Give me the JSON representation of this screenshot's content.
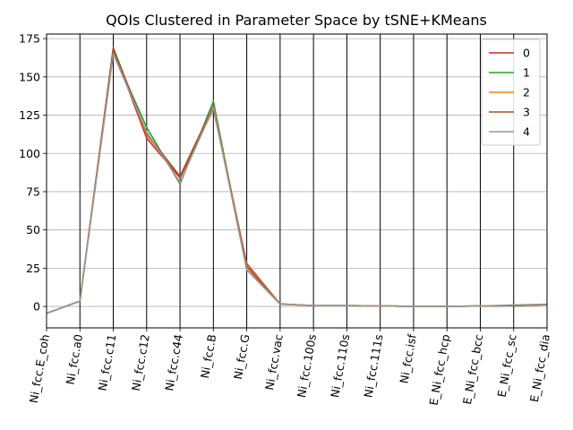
{
  "chart_data": {
    "type": "line",
    "title": "QOIs Clustered in Parameter Space by tSNE+KMeans",
    "xlabel": "",
    "ylabel": "",
    "categories": [
      "Ni_fcc.E_coh",
      "Ni_fcc.a0",
      "Ni_fcc.c11",
      "Ni_fcc.c12",
      "Ni_fcc.c44",
      "Ni_fcc.B",
      "Ni_fcc.G",
      "Ni_fcc.vac",
      "Ni_fcc.100s",
      "Ni_fcc.110s",
      "Ni_fcc.111s",
      "Ni_fcc.isf",
      "E_Ni_fcc_hcp",
      "E_Ni_fcc_bcc",
      "E_Ni_fcc_sc",
      "E_Ni_fcc_dia"
    ],
    "ylim": [
      -14,
      178
    ],
    "yticks": [
      0,
      25,
      50,
      75,
      100,
      125,
      150,
      175
    ],
    "grid": true,
    "legend_position": "upper right",
    "series": [
      {
        "name": "0",
        "color": "#d62728",
        "values": [
          -4.45,
          3.52,
          168,
          110,
          84,
          129,
          28,
          1.6,
          0.5,
          0.5,
          0.4,
          0.0,
          0.0,
          0.3,
          0.6,
          1.2
        ]
      },
      {
        "name": "1",
        "color": "#2ca02c",
        "values": [
          -4.45,
          3.52,
          166,
          117,
          80,
          134,
          24,
          1.5,
          0.5,
          0.5,
          0.4,
          0.0,
          0.0,
          0.3,
          0.6,
          1.2
        ]
      },
      {
        "name": "2",
        "color": "#ff7f0e",
        "values": [
          -4.45,
          3.52,
          169,
          112,
          85,
          131,
          27,
          1.6,
          0.5,
          0.5,
          0.4,
          0.0,
          0.0,
          0.3,
          0.6,
          1.2
        ]
      },
      {
        "name": "3",
        "color": "#a0522d",
        "values": [
          -4.45,
          3.52,
          169,
          113,
          85,
          131,
          26,
          1.6,
          0.5,
          0.5,
          0.4,
          0.0,
          0.0,
          0.3,
          0.6,
          1.2
        ]
      },
      {
        "name": "4",
        "color": "#999999",
        "values": [
          -4.45,
          3.52,
          165,
          114,
          81,
          130,
          24,
          1.5,
          0.5,
          0.5,
          0.4,
          0.0,
          0.0,
          0.3,
          1.0,
          1.5
        ]
      }
    ]
  }
}
